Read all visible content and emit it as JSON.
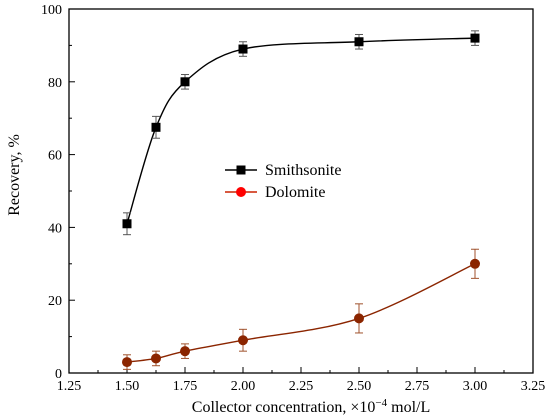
{
  "chart_data": {
    "type": "line",
    "title": "",
    "xlabel_main": "Collector concentration, ×10",
    "xlabel_exp": "−4",
    "xlabel_unit": " mol/L",
    "ylabel": "Recovery, %",
    "xlim": [
      1.25,
      3.25
    ],
    "ylim": [
      0,
      100
    ],
    "x_ticks": [
      "1.25",
      "1.50",
      "1.75",
      "2.00",
      "2.25",
      "2.50",
      "2.75",
      "3.00",
      "3.25"
    ],
    "y_ticks": [
      "0",
      "20",
      "40",
      "60",
      "80",
      "100"
    ],
    "grid": false,
    "legend_position": "center",
    "series": [
      {
        "name": "Smithsonite",
        "marker": "square",
        "color": "#000000",
        "x": [
          1.5,
          1.625,
          1.75,
          2.0,
          2.5,
          3.0
        ],
        "y": [
          41,
          67.5,
          80,
          89,
          91,
          92
        ],
        "err": [
          3,
          3,
          2,
          2,
          2,
          2
        ]
      },
      {
        "name": "Dolomite",
        "marker": "circle",
        "color": "#8b2500",
        "x": [
          1.5,
          1.625,
          1.75,
          2.0,
          2.5,
          3.0
        ],
        "y": [
          3,
          4,
          6,
          9,
          15,
          30
        ],
        "err": [
          2,
          2,
          2,
          3,
          4,
          4
        ]
      }
    ]
  }
}
